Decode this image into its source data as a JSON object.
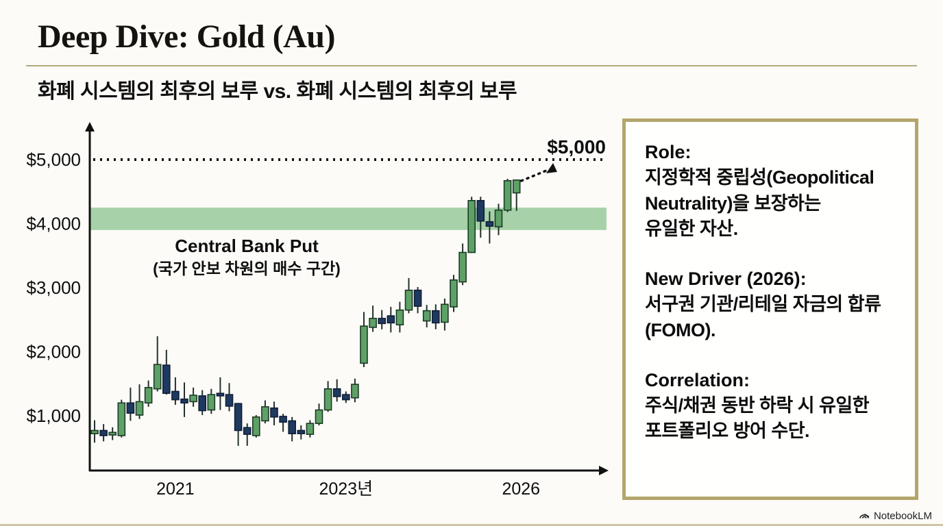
{
  "page": {
    "title": "Deep Dive: Gold (Au)",
    "subtitle": "화폐 시스템의 최후의 보루 vs. 화폐 시스템의 최후의 보루",
    "brand": "NotebookLM"
  },
  "colors": {
    "accent_gold": "#b3a66b",
    "title_rule": "#b3a87c",
    "candle_up_fill": "#5ea167",
    "candle_up_border": "#1c3a24",
    "candle_down_fill": "#1f3a60",
    "candle_down_border": "#101f38",
    "wick": "#24302a",
    "band_fill": "#a7d2a9",
    "axis": "#111111",
    "text": "#0e0e0e"
  },
  "chart_data": {
    "type": "candlestick",
    "title": "",
    "xlabel": "",
    "ylabel": "",
    "ylim": [
      0,
      5400
    ],
    "grid": false,
    "y_ticks": [
      {
        "label": "$5,000",
        "value": 5000
      },
      {
        "label": "$4,000",
        "value": 4000
      },
      {
        "label": "$3,000",
        "value": 3000
      },
      {
        "label": "$2,000",
        "value": 2000
      },
      {
        "label": "$1,000",
        "value": 1000
      }
    ],
    "x_ticks": [
      {
        "label": "2021",
        "index": 9
      },
      {
        "label": "2023년",
        "index": 28
      },
      {
        "label": "2026",
        "index": 47.5
      }
    ],
    "target_line": {
      "label": "$5,000",
      "value": 5000
    },
    "band": {
      "label": "Central Bank Put",
      "sublabel": "(국가 안보 차원의 매수 구간)",
      "from": 3900,
      "to": 4250
    },
    "candles_format": [
      "open",
      "high",
      "low",
      "close"
    ],
    "candles": [
      [
        720,
        930,
        580,
        770
      ],
      [
        770,
        870,
        600,
        690
      ],
      [
        700,
        820,
        620,
        740
      ],
      [
        690,
        1250,
        660,
        1200
      ],
      [
        1200,
        1440,
        920,
        1040
      ],
      [
        1010,
        1490,
        950,
        1220
      ],
      [
        1200,
        1550,
        1140,
        1440
      ],
      [
        1420,
        2240,
        1380,
        1800
      ],
      [
        1790,
        2030,
        1330,
        1350
      ],
      [
        1380,
        1600,
        1170,
        1250
      ],
      [
        1260,
        1520,
        980,
        1200
      ],
      [
        1220,
        1440,
        1140,
        1320
      ],
      [
        1310,
        1400,
        1010,
        1080
      ],
      [
        1090,
        1420,
        1030,
        1330
      ],
      [
        1350,
        1600,
        1090,
        1310
      ],
      [
        1330,
        1510,
        1070,
        1150
      ],
      [
        1190,
        1200,
        530,
        770
      ],
      [
        815,
        880,
        530,
        710
      ],
      [
        690,
        1010,
        660,
        980
      ],
      [
        920,
        1240,
        880,
        1140
      ],
      [
        1120,
        1220,
        850,
        980
      ],
      [
        990,
        1030,
        750,
        900
      ],
      [
        920,
        980,
        600,
        720
      ],
      [
        770,
        850,
        630,
        720
      ],
      [
        710,
        930,
        660,
        880
      ],
      [
        880,
        1190,
        850,
        1090
      ],
      [
        1090,
        1540,
        1060,
        1420
      ],
      [
        1420,
        1570,
        1220,
        1300
      ],
      [
        1330,
        1380,
        1200,
        1250
      ],
      [
        1280,
        1580,
        1210,
        1490
      ],
      [
        1820,
        2620,
        1760,
        2400
      ],
      [
        2380,
        2720,
        2310,
        2520
      ],
      [
        2520,
        2650,
        2350,
        2440
      ],
      [
        2560,
        2700,
        2300,
        2450
      ],
      [
        2420,
        2780,
        2300,
        2650
      ],
      [
        2650,
        3150,
        2600,
        2960
      ],
      [
        2960,
        3010,
        2600,
        2710
      ],
      [
        2480,
        2730,
        2380,
        2640
      ],
      [
        2640,
        2740,
        2350,
        2450
      ],
      [
        2460,
        2830,
        2330,
        2740
      ],
      [
        2700,
        3200,
        2620,
        3120
      ],
      [
        3090,
        3690,
        3040,
        3550
      ],
      [
        3550,
        4420,
        3540,
        4360
      ],
      [
        4360,
        4420,
        3780,
        4040
      ],
      [
        4030,
        4190,
        3690,
        3960
      ],
      [
        3950,
        4310,
        3820,
        4210
      ],
      [
        4210,
        4700,
        4180,
        4670
      ],
      [
        4480,
        4690,
        4200,
        4680
      ]
    ]
  },
  "panel": {
    "sections": [
      {
        "heading": "Role:",
        "body": "지정학적 중립성(Geopolitical\nNeutrality)을 보장하는\n유일한 자산."
      },
      {
        "heading": "New Driver (2026):",
        "body": "서구권 기관/리테일 자금의 합류\n(FOMO)."
      },
      {
        "heading": "Correlation:",
        "body": "주식/채권 동반 하락 시 유일한\n포트폴리오 방어 수단."
      }
    ]
  }
}
